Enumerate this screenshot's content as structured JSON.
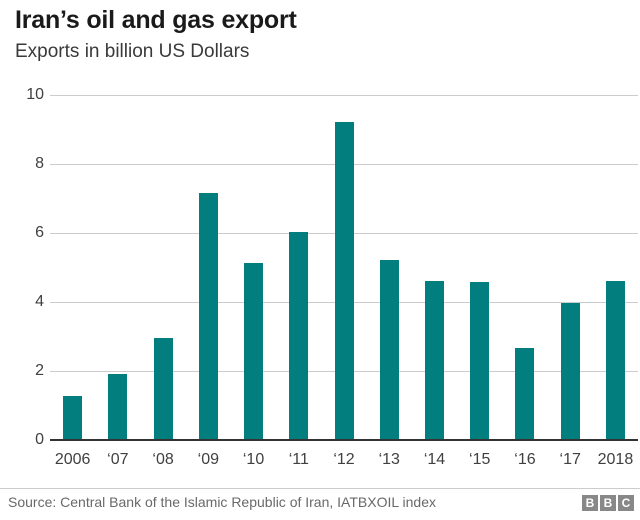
{
  "header": {
    "title": "Iran’s oil and gas export",
    "subtitle": "Exports in billion US Dollars"
  },
  "chart_data": {
    "type": "bar",
    "title": "Iran’s oil and gas export",
    "subtitle": "Exports in billion US Dollars",
    "categories": [
      "2006",
      "‘07",
      "‘08",
      "‘09",
      "‘10",
      "‘11",
      "‘12",
      "‘13",
      "‘14",
      "‘15",
      "‘16",
      "‘17",
      "2018"
    ],
    "values": [
      1.3,
      1.95,
      3.0,
      7.2,
      5.15,
      6.05,
      9.25,
      5.25,
      4.65,
      4.6,
      2.7,
      4.0,
      4.65
    ],
    "xlabel": "",
    "ylabel": "",
    "ylim": [
      0,
      10
    ],
    "yticks": [
      0,
      2,
      4,
      6,
      8,
      10
    ],
    "grid": true,
    "legend": "none",
    "bar_color": "#037e7e",
    "gridline_color": "#cccccc",
    "axis_color": "#333333",
    "tick_label_color": "#404040"
  },
  "footer": {
    "source": "Source: Central Bank of the Islamic Republic of Iran, IATBXOIL index",
    "logo_letters": [
      "B",
      "B",
      "C"
    ]
  }
}
